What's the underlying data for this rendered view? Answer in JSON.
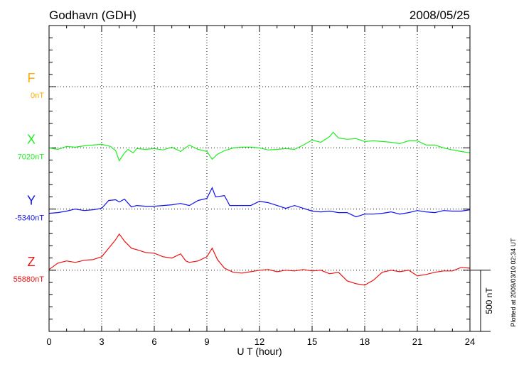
{
  "chart_data": {
    "type": "line",
    "title": "Godhavn (GDH)",
    "date": "2008/05/25",
    "xlabel": "U T (hour)",
    "xlim": [
      0,
      24
    ],
    "xticks": [
      "0",
      "3",
      "6",
      "9",
      "12",
      "15",
      "18",
      "21",
      "24"
    ],
    "scale_label": "500 nT",
    "scale_nT": 500,
    "plotted_note": "Plotted at 2009/03/10 02:34 UT",
    "grid": true,
    "series": [
      {
        "name": "F",
        "baseline_label": "0nT",
        "baseline": 0,
        "color": "#ffaa00",
        "points": []
      },
      {
        "name": "X",
        "baseline_label": "7020nT",
        "baseline": 7020,
        "color": "#22ee22",
        "points": [
          [
            0,
            7020
          ],
          [
            0.5,
            7008
          ],
          [
            1,
            7032
          ],
          [
            1.5,
            7026
          ],
          [
            2,
            7037
          ],
          [
            2.5,
            7043
          ],
          [
            3,
            7049
          ],
          [
            3.5,
            7032
          ],
          [
            3.8,
            6997
          ],
          [
            4,
            6915
          ],
          [
            4.3,
            6979
          ],
          [
            4.5,
            7008
          ],
          [
            4.8,
            6979
          ],
          [
            5,
            7014
          ],
          [
            5.5,
            7008
          ],
          [
            6,
            7014
          ],
          [
            6.5,
            7003
          ],
          [
            7,
            7026
          ],
          [
            7.5,
            6991
          ],
          [
            8,
            7043
          ],
          [
            8.5,
            7008
          ],
          [
            9,
            6991
          ],
          [
            9.3,
            6927
          ],
          [
            9.6,
            6968
          ],
          [
            10,
            6997
          ],
          [
            10.5,
            7020
          ],
          [
            11,
            7026
          ],
          [
            11.5,
            7026
          ],
          [
            12,
            7020
          ],
          [
            12.5,
            7003
          ],
          [
            13,
            7008
          ],
          [
            13.5,
            7014
          ],
          [
            14,
            7008
          ],
          [
            14.5,
            7043
          ],
          [
            15,
            7084
          ],
          [
            15.5,
            7066
          ],
          [
            16,
            7113
          ],
          [
            16.2,
            7148
          ],
          [
            16.5,
            7101
          ],
          [
            17,
            7090
          ],
          [
            17.5,
            7096
          ],
          [
            18,
            7072
          ],
          [
            18.5,
            7078
          ],
          [
            19,
            7072
          ],
          [
            19.5,
            7066
          ],
          [
            20,
            7055
          ],
          [
            20.5,
            7078
          ],
          [
            21,
            7078
          ],
          [
            21.5,
            7043
          ],
          [
            22,
            7043
          ],
          [
            22.5,
            7020
          ],
          [
            23,
            7003
          ],
          [
            23.5,
            6991
          ],
          [
            24,
            6979
          ]
        ]
      },
      {
        "name": "Y",
        "baseline_label": "-5340nT",
        "baseline": -5340,
        "color": "#1111ee",
        "points": [
          [
            0,
            -5375
          ],
          [
            0.5,
            -5369
          ],
          [
            1,
            -5357
          ],
          [
            1.5,
            -5340
          ],
          [
            2,
            -5352
          ],
          [
            2.5,
            -5346
          ],
          [
            3,
            -5334
          ],
          [
            3.4,
            -5270
          ],
          [
            3.8,
            -5264
          ],
          [
            4,
            -5282
          ],
          [
            4.3,
            -5259
          ],
          [
            4.7,
            -5323
          ],
          [
            5,
            -5311
          ],
          [
            5.5,
            -5317
          ],
          [
            6,
            -5317
          ],
          [
            6.5,
            -5311
          ],
          [
            7,
            -5305
          ],
          [
            7.5,
            -5294
          ],
          [
            8,
            -5311
          ],
          [
            8.5,
            -5270
          ],
          [
            9,
            -5253
          ],
          [
            9.3,
            -5166
          ],
          [
            9.5,
            -5241
          ],
          [
            10,
            -5230
          ],
          [
            10.3,
            -5311
          ],
          [
            11,
            -5311
          ],
          [
            11.5,
            -5311
          ],
          [
            12,
            -5276
          ],
          [
            12.5,
            -5288
          ],
          [
            13,
            -5311
          ],
          [
            13.5,
            -5334
          ],
          [
            14,
            -5311
          ],
          [
            14.5,
            -5334
          ],
          [
            15,
            -5357
          ],
          [
            15.5,
            -5363
          ],
          [
            16,
            -5357
          ],
          [
            16.5,
            -5369
          ],
          [
            17,
            -5369
          ],
          [
            17.5,
            -5404
          ],
          [
            18,
            -5381
          ],
          [
            18.5,
            -5381
          ],
          [
            19,
            -5375
          ],
          [
            19.5,
            -5363
          ],
          [
            20,
            -5381
          ],
          [
            20.5,
            -5369
          ],
          [
            21,
            -5352
          ],
          [
            21.5,
            -5363
          ],
          [
            22,
            -5369
          ],
          [
            22.5,
            -5352
          ],
          [
            23,
            -5357
          ],
          [
            23.5,
            -5357
          ],
          [
            24,
            -5346
          ]
        ]
      },
      {
        "name": "Z",
        "baseline_label": "55880nT",
        "baseline": 55880,
        "color": "#ee1111",
        "points": [
          [
            0,
            55886
          ],
          [
            0.5,
            55938
          ],
          [
            1,
            55956
          ],
          [
            1.5,
            55944
          ],
          [
            2,
            55961
          ],
          [
            2.5,
            55967
          ],
          [
            3,
            55990
          ],
          [
            3.4,
            56060
          ],
          [
            3.8,
            56130
          ],
          [
            4,
            56176
          ],
          [
            4.3,
            56118
          ],
          [
            4.7,
            56060
          ],
          [
            5,
            56048
          ],
          [
            5.5,
            56025
          ],
          [
            6,
            56019
          ],
          [
            6.5,
            55990
          ],
          [
            7,
            55979
          ],
          [
            7.5,
            56014
          ],
          [
            7.8,
            55956
          ],
          [
            8,
            55944
          ],
          [
            8.5,
            55956
          ],
          [
            9,
            55990
          ],
          [
            9.3,
            56060
          ],
          [
            9.6,
            55967
          ],
          [
            10,
            55897
          ],
          [
            10.5,
            55863
          ],
          [
            11,
            55857
          ],
          [
            11.5,
            55868
          ],
          [
            12,
            55880
          ],
          [
            12.5,
            55886
          ],
          [
            13,
            55868
          ],
          [
            13.5,
            55880
          ],
          [
            14,
            55874
          ],
          [
            14.5,
            55886
          ],
          [
            15,
            55874
          ],
          [
            15.5,
            55880
          ],
          [
            16,
            55851
          ],
          [
            16.5,
            55863
          ],
          [
            17,
            55793
          ],
          [
            17.5,
            55770
          ],
          [
            18,
            55758
          ],
          [
            18.5,
            55799
          ],
          [
            19,
            55863
          ],
          [
            19.5,
            55880
          ],
          [
            20,
            55868
          ],
          [
            20.5,
            55880
          ],
          [
            21,
            55834
          ],
          [
            21.5,
            55845
          ],
          [
            22,
            55863
          ],
          [
            22.5,
            55874
          ],
          [
            23,
            55874
          ],
          [
            23.5,
            55903
          ],
          [
            24,
            55897
          ]
        ]
      }
    ]
  }
}
